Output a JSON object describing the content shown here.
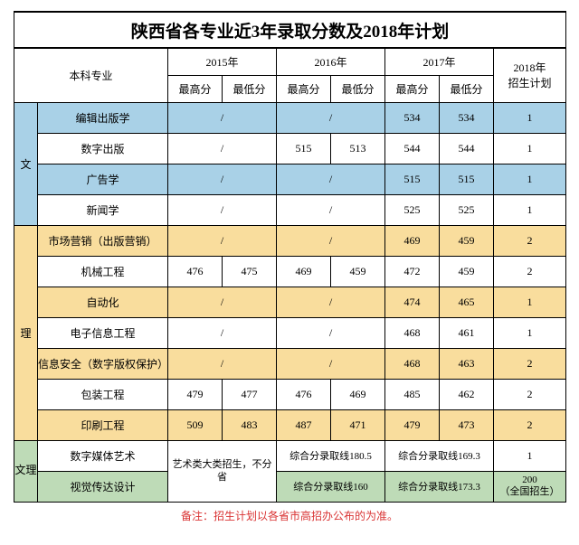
{
  "title": "陕西省各专业近3年录取分数及2018年计划",
  "col_major": "本科专业",
  "years": [
    "2015年",
    "2016年",
    "2017年"
  ],
  "score_cols": [
    "最高分",
    "最低分"
  ],
  "col_plan": "2018年\n招生计划",
  "col_plan_l1": "2018年",
  "col_plan_l2": "招生计划",
  "cat_wen": "文",
  "cat_li": "理",
  "cat_wenli": "文理",
  "art_merged": "艺术类大类招生，不分省",
  "rows": {
    "r1": {
      "major": "编辑出版学",
      "y15h": "/",
      "y15l": "",
      "span15": true,
      "y16h": "/",
      "y16l": "",
      "span16": true,
      "y17h": "534",
      "y17l": "534",
      "span17": false,
      "plan": "1"
    },
    "r2": {
      "major": "数字出版",
      "y15h": "/",
      "y15l": "",
      "span15": true,
      "y16h": "515",
      "y16l": "513",
      "span16": false,
      "y17h": "544",
      "y17l": "544",
      "span17": false,
      "plan": "1"
    },
    "r3": {
      "major": "广告学",
      "y15h": "/",
      "y15l": "",
      "span15": true,
      "y16h": "/",
      "y16l": "",
      "span16": true,
      "y17h": "515",
      "y17l": "515",
      "span17": false,
      "plan": "1"
    },
    "r4": {
      "major": "新闻学",
      "y15h": "/",
      "y15l": "",
      "span15": true,
      "y16h": "/",
      "y16l": "",
      "span16": true,
      "y17h": "525",
      "y17l": "525",
      "span17": false,
      "plan": "1"
    },
    "r5": {
      "major": "市场营销（出版营销）",
      "y15h": "/",
      "y15l": "",
      "span15": true,
      "y16h": "/",
      "y16l": "",
      "span16": true,
      "y17h": "469",
      "y17l": "459",
      "span17": false,
      "plan": "2"
    },
    "r6": {
      "major": "机械工程",
      "y15h": "476",
      "y15l": "475",
      "span15": false,
      "y16h": "469",
      "y16l": "459",
      "span16": false,
      "y17h": "472",
      "y17l": "459",
      "span17": false,
      "plan": "2"
    },
    "r7": {
      "major": "自动化",
      "y15h": "/",
      "y15l": "",
      "span15": true,
      "y16h": "/",
      "y16l": "",
      "span16": true,
      "y17h": "474",
      "y17l": "465",
      "span17": false,
      "plan": "1"
    },
    "r8": {
      "major": "电子信息工程",
      "y15h": "/",
      "y15l": "",
      "span15": true,
      "y16h": "/",
      "y16l": "",
      "span16": true,
      "y17h": "468",
      "y17l": "461",
      "span17": false,
      "plan": "1"
    },
    "r9": {
      "major": "信息安全（数字版权保护）",
      "y15h": "/",
      "y15l": "",
      "span15": true,
      "y16h": "/",
      "y16l": "",
      "span16": true,
      "y17h": "468",
      "y17l": "463",
      "span17": false,
      "plan": "2"
    },
    "r10": {
      "major": "包装工程",
      "y15h": "479",
      "y15l": "477",
      "span15": false,
      "y16h": "476",
      "y16l": "469",
      "span16": false,
      "y17h": "485",
      "y17l": "462",
      "span17": false,
      "plan": "2"
    },
    "r11": {
      "major": "印刷工程",
      "y15h": "509",
      "y15l": "483",
      "span15": false,
      "y16h": "487",
      "y16l": "471",
      "span16": false,
      "y17h": "479",
      "y17l": "473",
      "span17": false,
      "plan": "2"
    },
    "r12": {
      "major": "数字媒体艺术",
      "y16": "综合分录取线180.5",
      "y17": "综合分录取线169.3",
      "plan": "1"
    },
    "r13": {
      "major": "视觉传达设计",
      "y16": "综合分录取线160",
      "y17": "综合分录取线173.3",
      "plan_l1": "200",
      "plan_l2": "（全国招生）"
    }
  },
  "footnote": "备注：招生计划以各省市高招办公布的为准。",
  "colors": {
    "blue": "#a9d1e7",
    "yellow": "#f9dd9d",
    "green": "#bedbb7",
    "white": "#ffffff",
    "border": "#000000",
    "note_red": "#d93333"
  }
}
